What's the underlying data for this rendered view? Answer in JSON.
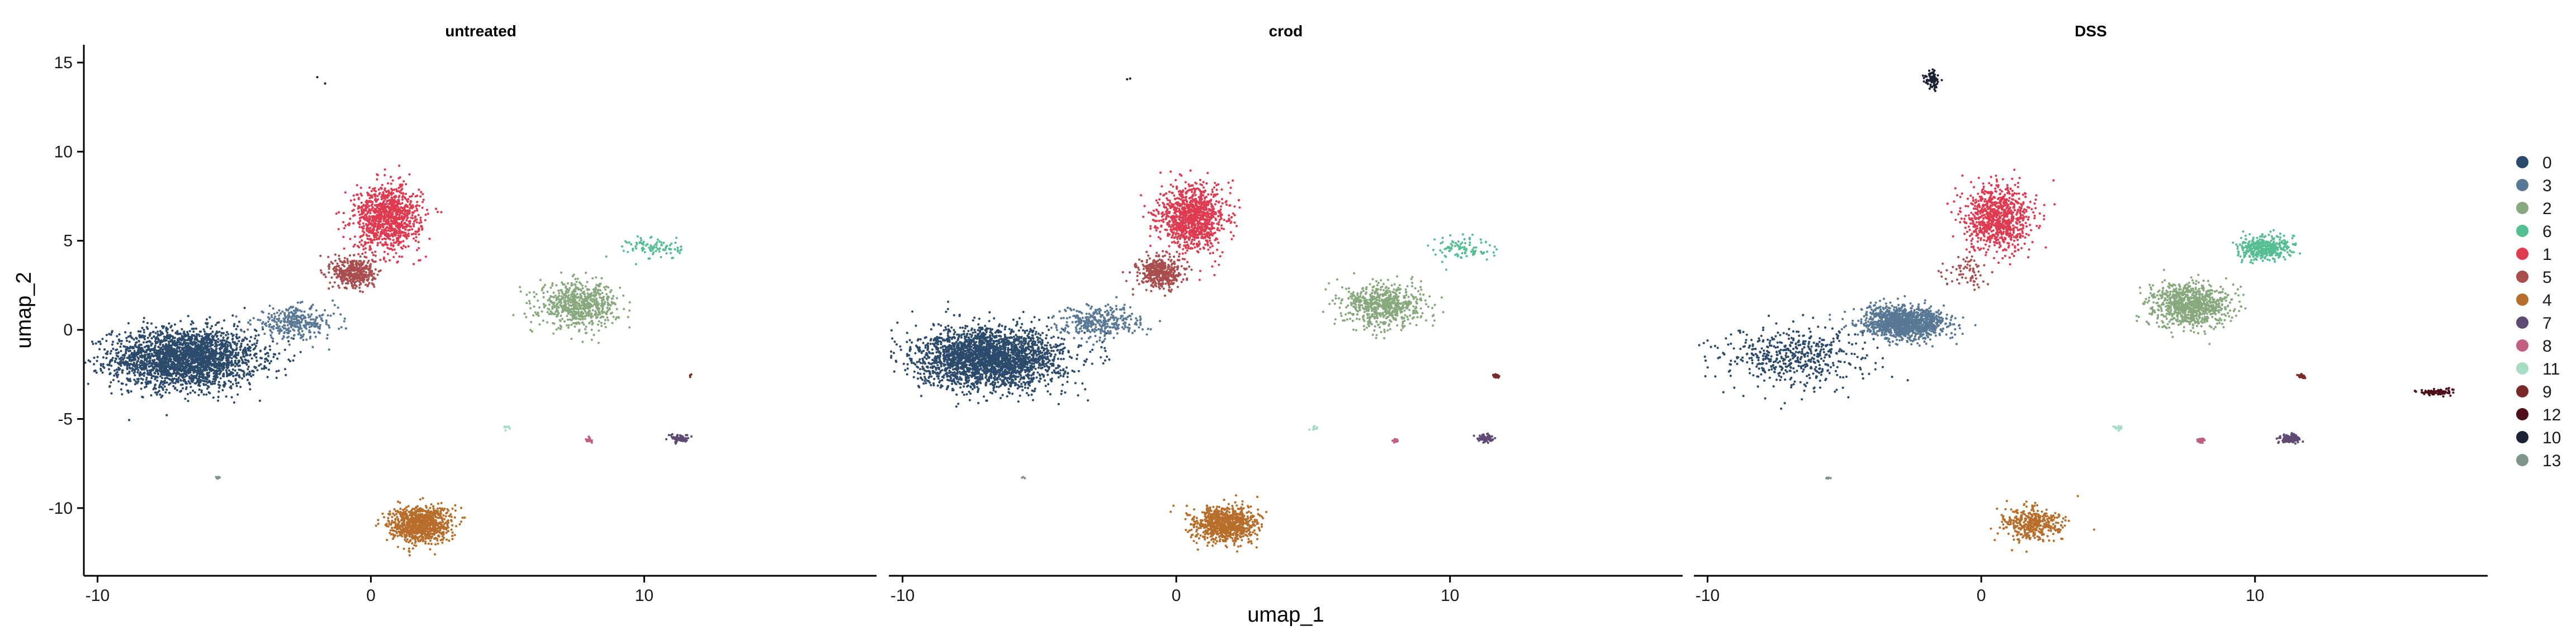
{
  "chart_data": {
    "type": "scatter",
    "facets": [
      "untreated",
      "crod",
      "DSS"
    ],
    "xlabel": "umap_1",
    "ylabel": "umap_2",
    "xlim": [
      -10.5,
      18.5
    ],
    "ylim": [
      -13.8,
      16
    ],
    "x_ticks": [
      -10,
      0,
      10
    ],
    "y_ticks": [
      -10,
      -5,
      0,
      5,
      10,
      15
    ],
    "grid": false,
    "legend_position": "right",
    "legend": [
      {
        "label": "0",
        "color": "#2C4A6B"
      },
      {
        "label": "3",
        "color": "#587895"
      },
      {
        "label": "2",
        "color": "#88A97E"
      },
      {
        "label": "6",
        "color": "#55BE92"
      },
      {
        "label": "1",
        "color": "#E03A51"
      },
      {
        "label": "5",
        "color": "#A94D4E"
      },
      {
        "label": "4",
        "color": "#B86E2B"
      },
      {
        "label": "7",
        "color": "#5F4A74"
      },
      {
        "label": "8",
        "color": "#C15F82"
      },
      {
        "label": "11",
        "color": "#A8DDC5"
      },
      {
        "label": "9",
        "color": "#7A2828"
      },
      {
        "label": "12",
        "color": "#4E0F1B"
      },
      {
        "label": "10",
        "color": "#1B2233"
      },
      {
        "label": "13",
        "color": "#7E968A"
      }
    ],
    "clusters": [
      {
        "label": "0",
        "center": [
          -6.8,
          -1.6
        ],
        "spread": [
          2.4,
          1.5
        ],
        "n_per_panel": [
          2600,
          2600,
          520
        ]
      },
      {
        "label": "3",
        "center": [
          -2.8,
          0.4
        ],
        "spread": [
          1.4,
          0.8
        ],
        "n_per_panel": [
          320,
          320,
          1250
        ]
      },
      {
        "label": "2",
        "center": [
          7.6,
          1.4
        ],
        "spread": [
          1.3,
          1.1
        ],
        "n_per_panel": [
          650,
          650,
          900
        ]
      },
      {
        "label": "6",
        "center": [
          10.4,
          4.6
        ],
        "spread": [
          0.9,
          0.6
        ],
        "n_per_panel": [
          90,
          90,
          380
        ]
      },
      {
        "label": "1",
        "center": [
          0.6,
          6.3
        ],
        "spread": [
          1.1,
          1.6
        ],
        "n_per_panel": [
          1050,
          1050,
          900
        ]
      },
      {
        "label": "5",
        "center": [
          -0.6,
          3.2
        ],
        "spread": [
          0.7,
          0.8
        ],
        "n_per_panel": [
          420,
          420,
          70
        ]
      },
      {
        "label": "4",
        "center": [
          1.8,
          -10.9
        ],
        "spread": [
          1.0,
          0.9
        ],
        "n_per_panel": [
          950,
          900,
          380
        ]
      },
      {
        "label": "7",
        "center": [
          11.3,
          -6.1
        ],
        "spread": [
          0.3,
          0.2
        ],
        "n_per_panel": [
          70,
          60,
          150
        ]
      },
      {
        "label": "8",
        "center": [
          8.0,
          -6.2
        ],
        "spread": [
          0.12,
          0.1
        ],
        "n_per_panel": [
          18,
          14,
          50
        ]
      },
      {
        "label": "11",
        "center": [
          5.0,
          -5.5
        ],
        "spread": [
          0.15,
          0.12
        ],
        "n_per_panel": [
          8,
          8,
          18
        ]
      },
      {
        "label": "9",
        "center": [
          11.7,
          -2.6
        ],
        "spread": [
          0.12,
          0.1
        ],
        "n_per_panel": [
          3,
          35,
          30
        ]
      },
      {
        "label": "12",
        "center": [
          16.6,
          -3.5
        ],
        "spread": [
          0.5,
          0.15
        ],
        "n_per_panel": [
          0,
          0,
          95
        ]
      },
      {
        "label": "10",
        "center": [
          -1.8,
          14.0
        ],
        "spread": [
          0.25,
          0.5
        ],
        "n_per_panel": [
          2,
          2,
          80
        ]
      },
      {
        "label": "13",
        "center": [
          -5.6,
          -8.3
        ],
        "spread": [
          0.08,
          0.06
        ],
        "n_per_panel": [
          8,
          3,
          6
        ]
      }
    ]
  }
}
